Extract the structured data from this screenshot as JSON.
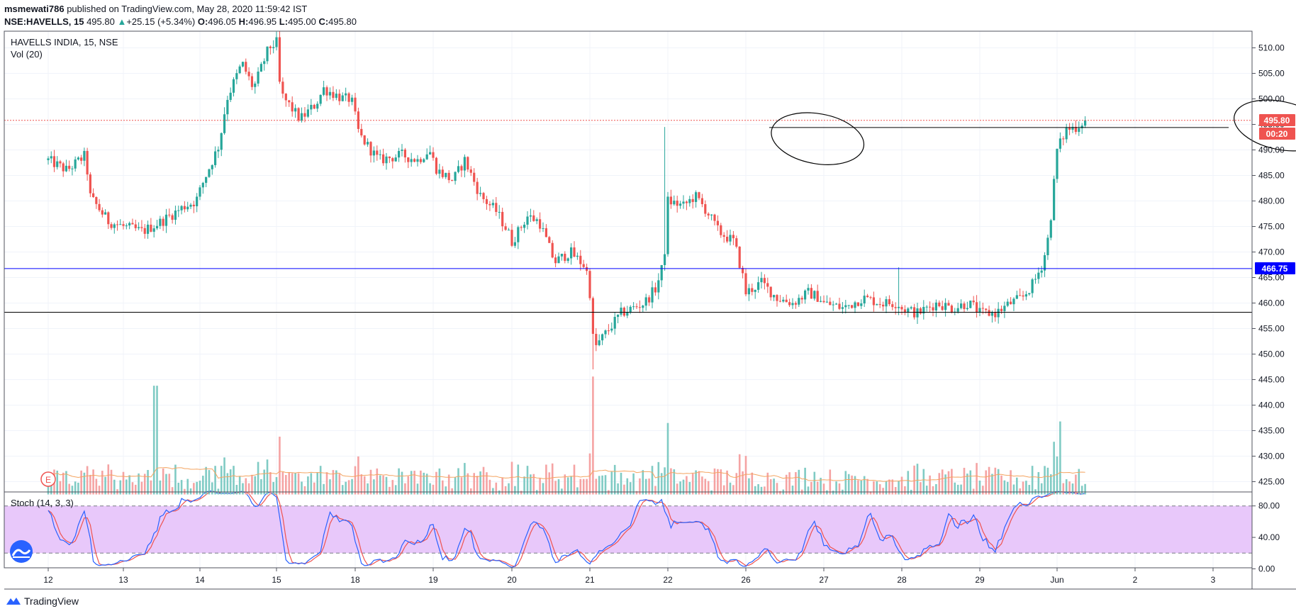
{
  "header": {
    "publisher_name": "msmewati786",
    "published_text": "published on TradingView.com, May 28, 2020 11:59:42 IST",
    "symbol": "NSE:HAVELLS, 15",
    "last_price": "495.80",
    "change": "+25.15 (+5.34%)",
    "o_label": "O:",
    "o_value": "496.05",
    "h_label": "H:",
    "h_value": "496.95",
    "l_label": "L:",
    "l_value": "495.00",
    "c_label": "C:",
    "c_value": "495.80"
  },
  "pane": {
    "title": "HAVELLS INDIA, 15, NSE",
    "vol_label": "Vol (20)",
    "stoch_label": "Stoch (14, 3, 3)",
    "earnings_marker": "E"
  },
  "badges": {
    "last_price": "495.80",
    "countdown": "00:20",
    "blue_line": "466.75"
  },
  "colors": {
    "up": "#26a69a",
    "down": "#ef5350",
    "vol_up": "#80cbc4",
    "vol_down": "#f5a3a3",
    "blue_line": "#0000ff",
    "stoch_fill": "#e8c8fa",
    "ma": "#f4a460",
    "k_line": "#2962ff",
    "d_line": "#ef5350"
  },
  "footer": {
    "brand": "TradingView"
  },
  "chart_data": {
    "type": "candlestick",
    "symbol": "HAVELLS INDIA, 15, NSE",
    "price_axis": {
      "range": [
        422,
        513
      ],
      "ticks": [
        "510.00",
        "505.00",
        "500.00",
        "495.00",
        "490.00",
        "485.00",
        "480.00",
        "475.00",
        "470.00",
        "465.00",
        "460.00",
        "455.00",
        "450.00",
        "445.00",
        "440.00",
        "435.00",
        "430.00",
        "425.00"
      ]
    },
    "stoch_axis": {
      "range": [
        0,
        105
      ],
      "ticks": [
        "80.00",
        "40.00",
        "0.00"
      ],
      "bands": [
        20,
        80
      ]
    },
    "x_axis": {
      "ticks": [
        "12",
        "13",
        "14",
        "15",
        "18",
        "19",
        "20",
        "21",
        "22",
        "26",
        "27",
        "28",
        "29",
        "Jun",
        "2",
        "3"
      ]
    },
    "horizontal_lines": [
      {
        "price": 495.8,
        "style": "dotted",
        "color": "#ef5350"
      },
      {
        "price": 494.4,
        "style": "solid",
        "color": "#000000",
        "from_day": 20.3,
        "to_day": 31.2
      },
      {
        "price": 466.75,
        "style": "solid",
        "color": "#0000ff"
      },
      {
        "price": 458.2,
        "style": "solid",
        "color": "#000000"
      }
    ],
    "ellipses": [
      {
        "center_day": 20.92,
        "center_price": 492.2,
        "rx_day": 0.6,
        "ry_price": 4.9,
        "rotation_deg": 10
      },
      {
        "center_day": 28.86,
        "center_price": 494.8,
        "rx_day": 0.6,
        "ry_price": 4.7,
        "rotation_deg": 12
      }
    ],
    "bars_per_day": 25,
    "price_path": [
      [
        11.0,
        488
      ],
      [
        11.25,
        486
      ],
      [
        11.5,
        489
      ],
      [
        11.55,
        481
      ],
      [
        11.8,
        476
      ],
      [
        12.0,
        475
      ],
      [
        12.25,
        474
      ],
      [
        12.5,
        476
      ],
      [
        12.8,
        479
      ],
      [
        12.95,
        480
      ],
      [
        13.05,
        484
      ],
      [
        13.25,
        491
      ],
      [
        13.35,
        500
      ],
      [
        13.55,
        507
      ],
      [
        13.7,
        502
      ],
      [
        13.9,
        510
      ],
      [
        14.0,
        511
      ],
      [
        14.05,
        501
      ],
      [
        14.3,
        496
      ],
      [
        14.5,
        499
      ],
      [
        14.6,
        502
      ],
      [
        14.85,
        500
      ],
      [
        14.95,
        500
      ],
      [
        15.05,
        493
      ],
      [
        15.3,
        488
      ],
      [
        15.6,
        489
      ],
      [
        15.8,
        488
      ],
      [
        15.95,
        490
      ],
      [
        16.05,
        486
      ],
      [
        16.25,
        484
      ],
      [
        16.4,
        488
      ],
      [
        16.6,
        481
      ],
      [
        16.8,
        478
      ],
      [
        16.95,
        474
      ],
      [
        17.0,
        472
      ],
      [
        17.2,
        477
      ],
      [
        17.35,
        476
      ],
      [
        17.55,
        468
      ],
      [
        17.75,
        470
      ],
      [
        17.95,
        467
      ],
      [
        18.0,
        462
      ],
      [
        18.05,
        451
      ],
      [
        18.15,
        453
      ],
      [
        18.3,
        456
      ],
      [
        18.4,
        458
      ],
      [
        18.55,
        459
      ],
      [
        18.7,
        460
      ],
      [
        18.85,
        463
      ],
      [
        18.95,
        468
      ],
      [
        19.0,
        480
      ],
      [
        19.2,
        479
      ],
      [
        19.35,
        481
      ],
      [
        19.5,
        478
      ],
      [
        19.65,
        474
      ],
      [
        19.85,
        472
      ],
      [
        19.95,
        466
      ],
      [
        20.0,
        462
      ],
      [
        20.2,
        464
      ],
      [
        20.4,
        461
      ],
      [
        20.6,
        460
      ],
      [
        20.8,
        462
      ],
      [
        20.95,
        461
      ],
      [
        21.0,
        460
      ],
      [
        21.25,
        459
      ],
      [
        21.5,
        461
      ],
      [
        21.75,
        460
      ],
      [
        21.95,
        460
      ],
      [
        22.0,
        459
      ],
      [
        22.2,
        458
      ],
      [
        22.45,
        460
      ],
      [
        22.65,
        459
      ],
      [
        22.85,
        460
      ],
      [
        22.95,
        459
      ],
      [
        23.0,
        458
      ],
      [
        23.2,
        458
      ],
      [
        23.4,
        460
      ],
      [
        23.55,
        461
      ],
      [
        23.7,
        464
      ],
      [
        23.82,
        468
      ],
      [
        23.9,
        474
      ],
      [
        23.95,
        482
      ],
      [
        24.0,
        490
      ],
      [
        24.12,
        494
      ],
      [
        24.25,
        494.5
      ],
      [
        24.35,
        495.8
      ]
    ],
    "notable_wicks": [
      {
        "day": 18.97,
        "high": 494.5
      },
      {
        "day": 21.95,
        "high": 467
      },
      {
        "day": 18.05,
        "low": 447
      }
    ],
    "volume_peak_bars": [
      {
        "day": 12.42,
        "value": 443.8
      },
      {
        "day": 18.05,
        "value": 445.6
      },
      {
        "day": 19.0,
        "value": 436.5
      },
      {
        "day": 24.05,
        "value": 436.8
      }
    ]
  }
}
